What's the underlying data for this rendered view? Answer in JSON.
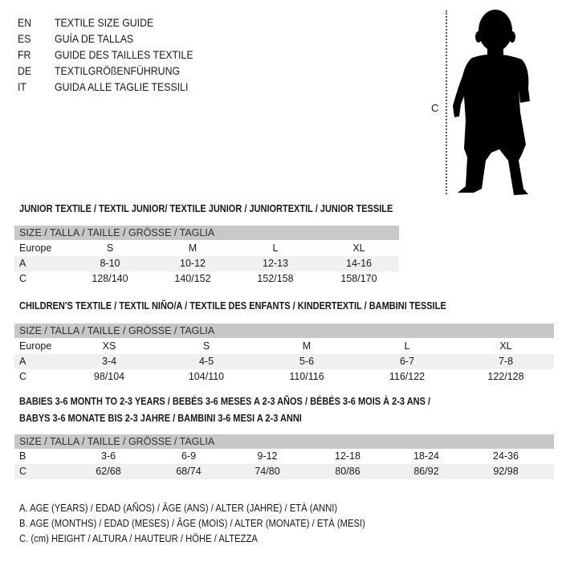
{
  "languages": [
    {
      "code": "EN",
      "text": "TEXTILE SIZE GUIDE"
    },
    {
      "code": "ES",
      "text": "GUÍA DE TALLAS"
    },
    {
      "code": "FR",
      "text": "GUIDE DES TAILLES TEXTILE"
    },
    {
      "code": "DE",
      "text": "TEXTILGRÖßENFÜHRUNG"
    },
    {
      "code": "IT",
      "text": "GUIDA ALLE TAGLIE TESSILI"
    }
  ],
  "figure": {
    "measure_label": "C",
    "icon": "child-silhouette-icon"
  },
  "junior": {
    "title": "JUNIOR TEXTILE / TEXTIL JUNIOR/ TEXTILE JUNIOR / JUNIORTEXTIL / JUNIOR TESSILE",
    "header": "SIZE / TALLA / TAILLE / GRÖSSE / TAGLIA",
    "rows": [
      {
        "label": "Europe",
        "values": [
          "S",
          "M",
          "L",
          "XL"
        ]
      },
      {
        "label": "A",
        "values": [
          "8-10",
          "10-12",
          "12-13",
          "14-16"
        ]
      },
      {
        "label": "C",
        "values": [
          "128/140",
          "140/152",
          "152/158",
          "158/170"
        ]
      }
    ]
  },
  "children": {
    "title": "CHILDREN'S TEXTILE / TEXTIL NIÑO/A / TEXTILE DES ENFANTS / KINDERTEXTIL / BAMBINI TESSILE",
    "header": "SIZE / TALLA / TAILLE / GRÖSSE / TAGLIA",
    "rows": [
      {
        "label": "Europe",
        "values": [
          "XS",
          "S",
          "M",
          "L",
          "XL"
        ]
      },
      {
        "label": "A",
        "values": [
          "3-4",
          "4-5",
          "5-6",
          "6-7",
          "7-8"
        ]
      },
      {
        "label": "C",
        "values": [
          "98/104",
          "104/110",
          "110/116",
          "116/122",
          "122/128"
        ]
      }
    ]
  },
  "babies": {
    "title_line1": "BABIES 3-6 MONTH TO 2-3 YEARS / BEBÉS 3-6 MESES A 2-3 AÑOS / BÉBÉS 3-6 MOIS À 2-3 ANS /",
    "title_line2": "BABYS 3-6 MONATE BIS 2-3 JAHRE / BAMBINI 3-6 MESI A 2-3 ANNI",
    "header": "SIZE / TALLA / TAILLE / GRÖSSE / TAGLIA",
    "rows": [
      {
        "label": "B",
        "values": [
          "3-6",
          "6-9",
          "9-12",
          "12-18",
          "18-24",
          "24-36"
        ]
      },
      {
        "label": "C",
        "values": [
          "62/68",
          "68/74",
          "74/80",
          "80/86",
          "86/92",
          "92/98"
        ]
      }
    ]
  },
  "legend": [
    "A. AGE (YEARS) / EDAD (AÑOS) / ÂGE (ANS) / ALTER (JAHRE) / ETÀ (ANNI)",
    "B. AGE (MONTHS) / EDAD (MESES) / ÂGE (MOIS) / ALTER (MONATE) / ETÀ (MESI)",
    "C. (cm) HEIGHT / ALTURA / HAUTEUR / HÖHE / ALTEZZA"
  ],
  "colors": {
    "header_bg": "#c8c8c8",
    "row_alt_bg": "#f0f0f0",
    "text": "#1a1a1a"
  }
}
